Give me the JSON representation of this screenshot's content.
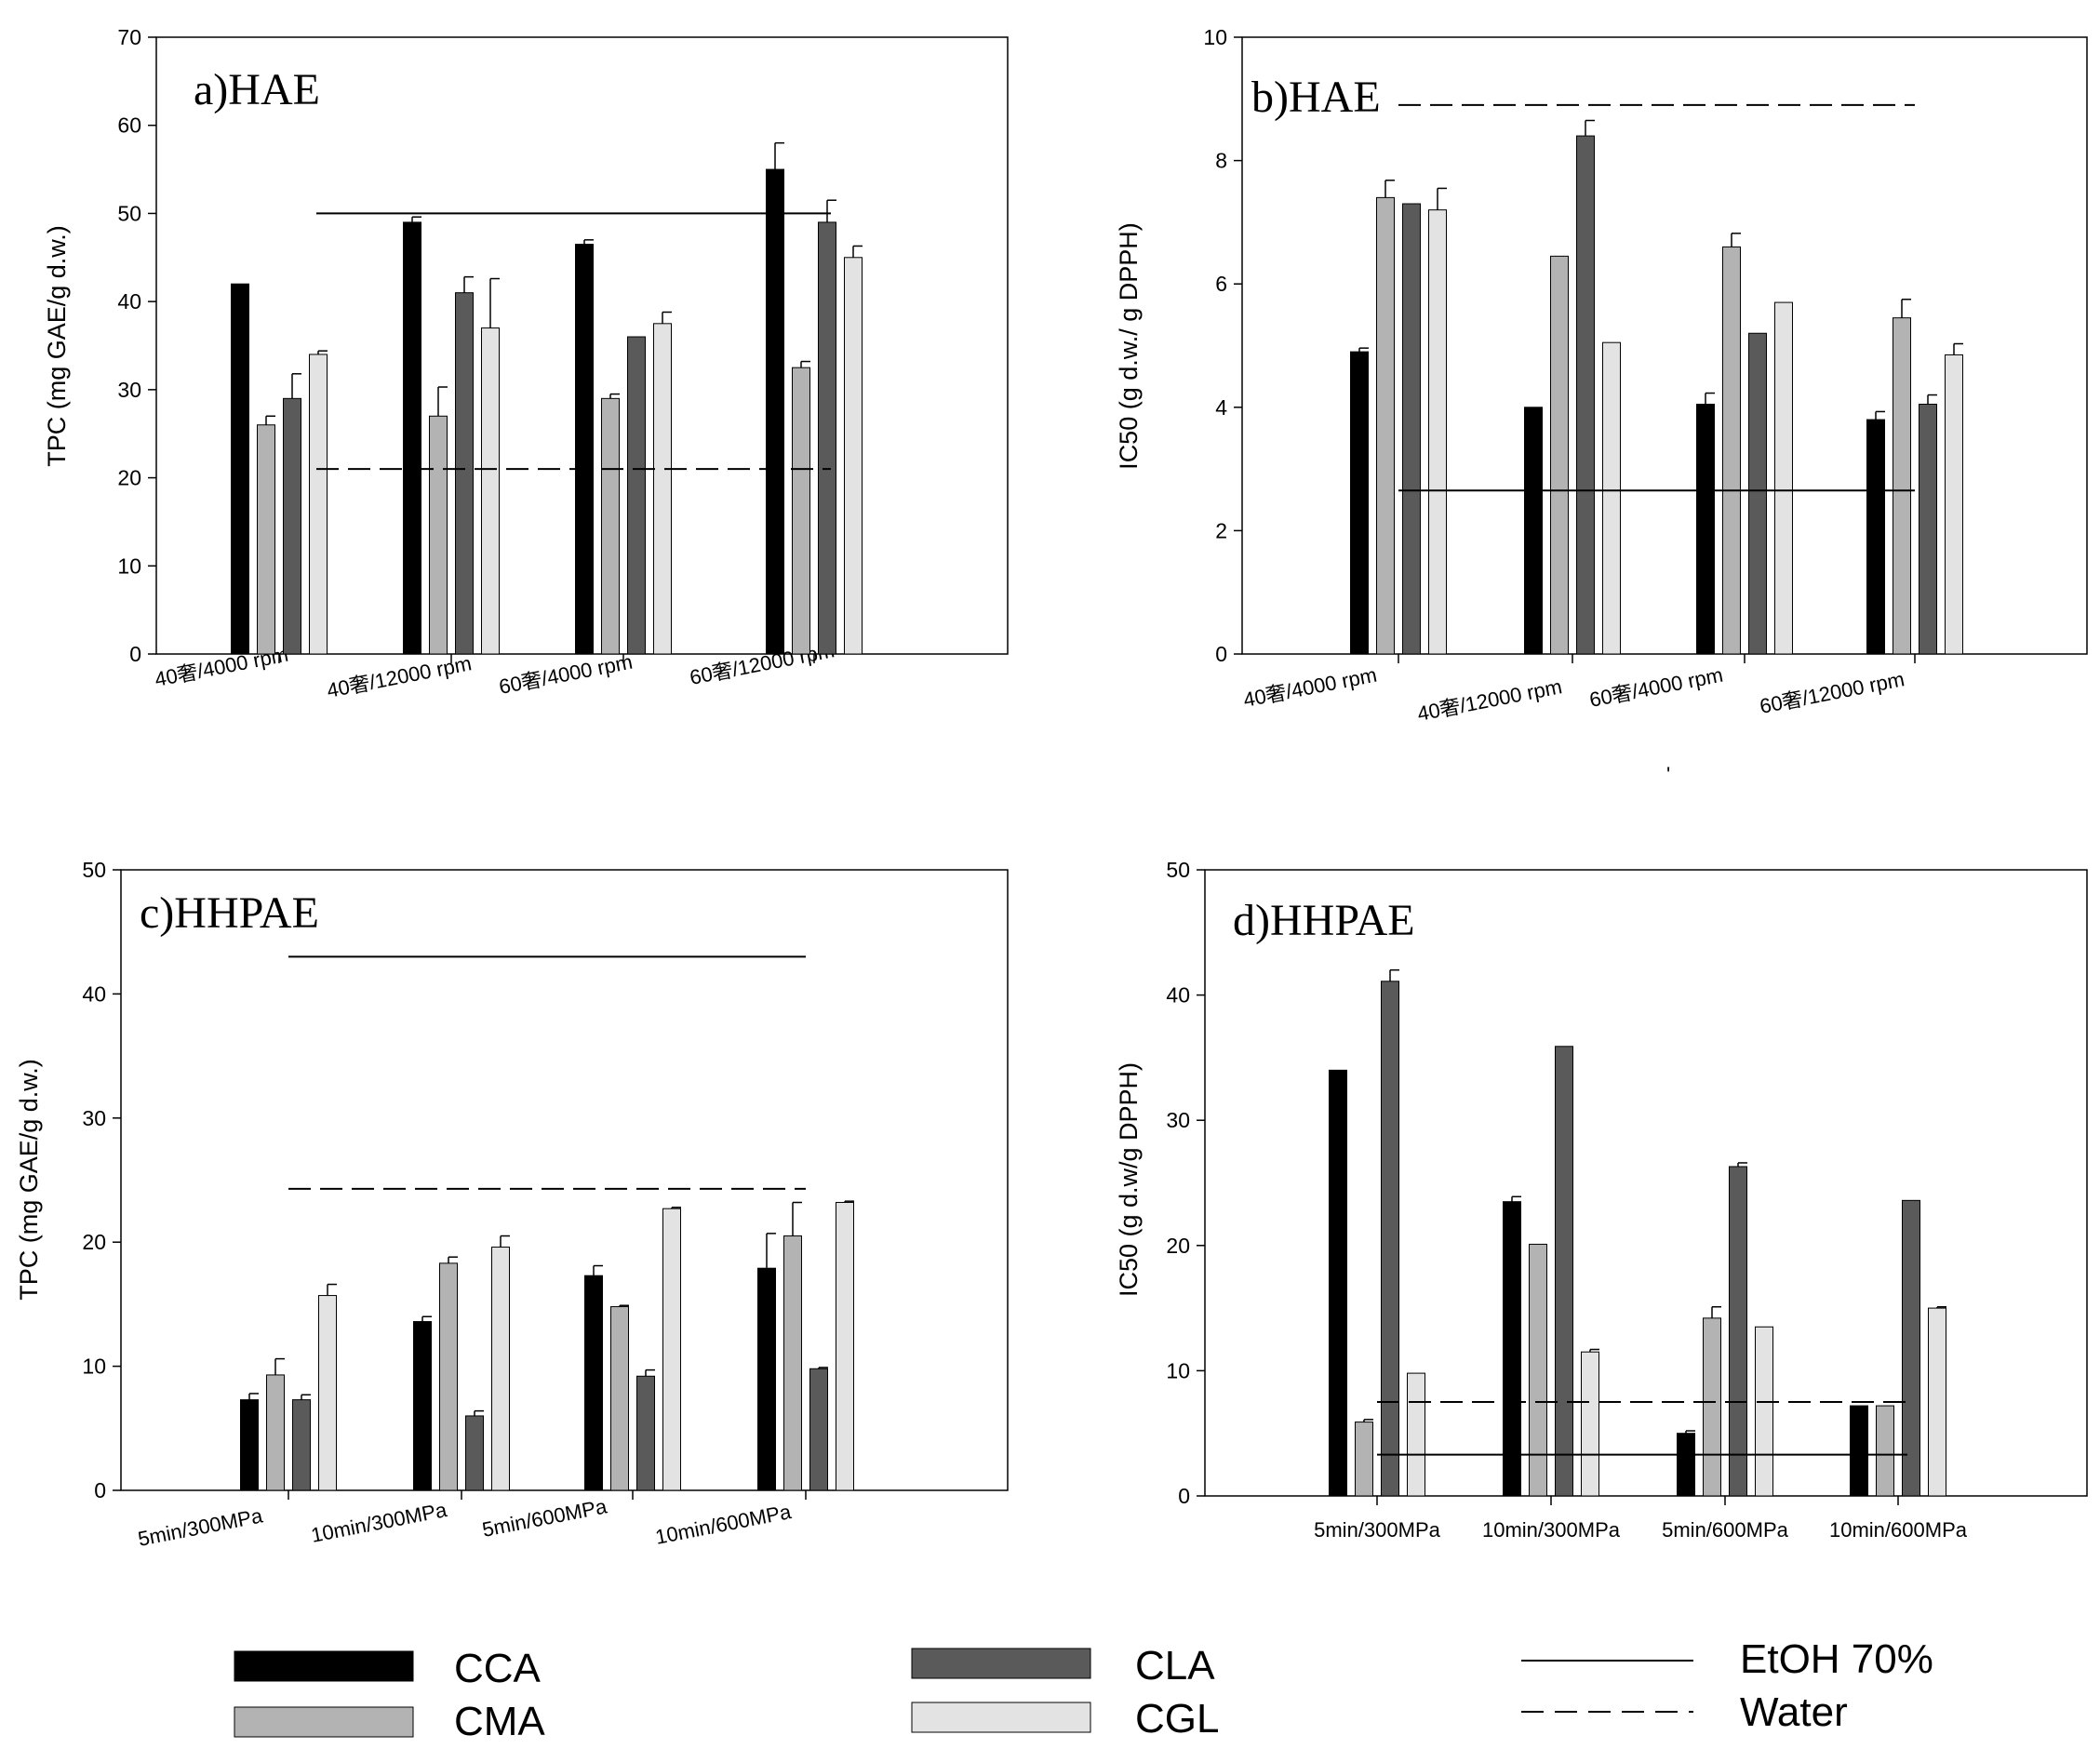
{
  "colors": {
    "CCA": "#000000",
    "CMA": "#b3b3b3",
    "CLA": "#5a5a5a",
    "CGL": "#e3e3e3"
  },
  "legend": {
    "bars": [
      {
        "series": "CCA",
        "label": "CCA"
      },
      {
        "series": "CMA",
        "label": "CMA"
      },
      {
        "series": "CLA",
        "label": "CLA"
      },
      {
        "series": "CGL",
        "label": "CGL"
      }
    ],
    "lines": [
      {
        "style": "solid",
        "label": "EtOH 70%"
      },
      {
        "style": "dashed",
        "label": "Water"
      }
    ]
  },
  "chart_data": [
    {
      "type": "bar",
      "title": "a)HAE",
      "ylabel": "TPC (mg GAE/g d.w.)",
      "ylim": [
        0,
        70
      ],
      "yticks": [
        0,
        10,
        20,
        30,
        40,
        50,
        60,
        70
      ],
      "categories": [
        "40奢/4000 rpm",
        "40奢/12000 rpm",
        "60奢/4000 rpm",
        "60奢/12000 rpm"
      ],
      "series": [
        {
          "name": "CCA",
          "values": [
            42,
            49,
            46.5,
            55
          ],
          "errors": [
            0,
            0.6,
            0.5,
            3
          ]
        },
        {
          "name": "CMA",
          "values": [
            26,
            27,
            29,
            32.5
          ],
          "errors": [
            1.0,
            3.3,
            0.5,
            0.7
          ]
        },
        {
          "name": "CLA",
          "values": [
            29,
            41,
            36,
            49
          ],
          "errors": [
            2.8,
            1.8,
            0,
            2.5
          ]
        },
        {
          "name": "CGL",
          "values": [
            34,
            37,
            37.5,
            45
          ],
          "errors": [
            0.4,
            5.6,
            1.3,
            1.3
          ]
        }
      ],
      "reference_lines": [
        {
          "name": "EtOH 70%",
          "style": "solid",
          "y": 50
        },
        {
          "name": "Water",
          "style": "dashed",
          "y": 21
        }
      ]
    },
    {
      "type": "bar",
      "title": "b)HAE",
      "ylabel": "IC50 (g d.w./ g DPPH)",
      "ylim": [
        0,
        10
      ],
      "yticks": [
        0,
        2,
        4,
        6,
        8,
        10
      ],
      "categories": [
        "40奢/4000 rpm",
        "40奢/12000 rpm",
        "60奢/4000 rpm",
        "60奢/12000 rpm"
      ],
      "series": [
        {
          "name": "CCA",
          "values": [
            4.9,
            4.0,
            4.05,
            3.8
          ],
          "errors": [
            0.06,
            0,
            0.18,
            0.13
          ]
        },
        {
          "name": "CMA",
          "values": [
            7.4,
            6.45,
            6.6,
            5.45
          ],
          "errors": [
            0.28,
            0,
            0.22,
            0.3
          ]
        },
        {
          "name": "CLA",
          "values": [
            7.3,
            8.4,
            5.2,
            4.05
          ],
          "errors": [
            0,
            0.25,
            0,
            0.15
          ]
        },
        {
          "name": "CGL",
          "values": [
            7.2,
            5.05,
            5.7,
            4.85
          ],
          "errors": [
            0.35,
            0,
            0,
            0.18
          ]
        }
      ],
      "reference_lines": [
        {
          "name": "EtOH 70%",
          "style": "solid",
          "y": 2.65
        },
        {
          "name": "Water",
          "style": "dashed",
          "y": 8.9
        }
      ]
    },
    {
      "type": "bar",
      "title": "c)HHPAE",
      "ylabel": "TPC (mg GAE/g d.w.)",
      "ylim": [
        0,
        50
      ],
      "yticks": [
        0,
        10,
        20,
        30,
        40,
        50
      ],
      "categories": [
        "5min/300MPa",
        "10min/300MPa",
        "5min/600MPa",
        "10min/600MPa"
      ],
      "series": [
        {
          "name": "CCA",
          "values": [
            7.3,
            13.6,
            17.3,
            17.9
          ],
          "errors": [
            0.5,
            0.4,
            0.8,
            2.8
          ]
        },
        {
          "name": "CMA",
          "values": [
            9.3,
            18.3,
            14.8,
            20.5
          ],
          "errors": [
            1.3,
            0.5,
            0.1,
            2.7
          ]
        },
        {
          "name": "CLA",
          "values": [
            7.3,
            6.0,
            9.2,
            9.8
          ],
          "errors": [
            0.4,
            0.4,
            0.5,
            0.1
          ]
        },
        {
          "name": "CGL",
          "values": [
            15.7,
            19.6,
            22.7,
            23.2
          ],
          "errors": [
            0.9,
            0.9,
            0.1,
            0.1
          ]
        }
      ],
      "reference_lines": [
        {
          "name": "EtOH 70%",
          "style": "solid",
          "y": 43
        },
        {
          "name": "Water",
          "style": "dashed",
          "y": 24.3
        }
      ]
    },
    {
      "type": "bar",
      "title": "d)HHPAE",
      "ylabel": "IC50 (g d.w/g DPPH)",
      "ylim": [
        0,
        50
      ],
      "yticks": [
        0,
        10,
        20,
        30,
        40,
        50
      ],
      "categories": [
        "5min/300MPa",
        "10min/300MPa",
        "5min/600MPa",
        "10min/600MPa"
      ],
      "series": [
        {
          "name": "CCA",
          "values": [
            34,
            23.5,
            5.0,
            7.2
          ],
          "errors": [
            0,
            0.4,
            0.2,
            0
          ]
        },
        {
          "name": "CMA",
          "values": [
            5.9,
            20.1,
            14.2,
            7.2
          ],
          "errors": [
            0.2,
            0,
            0.9,
            0
          ]
        },
        {
          "name": "CLA",
          "values": [
            41.1,
            35.9,
            26.3,
            23.6
          ],
          "errors": [
            0.9,
            0,
            0.3,
            0
          ]
        },
        {
          "name": "CGL",
          "values": [
            9.8,
            11.5,
            13.5,
            15.0
          ],
          "errors": [
            0,
            0.2,
            0,
            0.1
          ]
        }
      ],
      "reference_lines": [
        {
          "name": "EtOH 70%",
          "style": "solid",
          "y": 3.3
        },
        {
          "name": "Water",
          "style": "dashed",
          "y": 7.5
        }
      ]
    }
  ],
  "misc": {
    "stray_mark": "'"
  }
}
